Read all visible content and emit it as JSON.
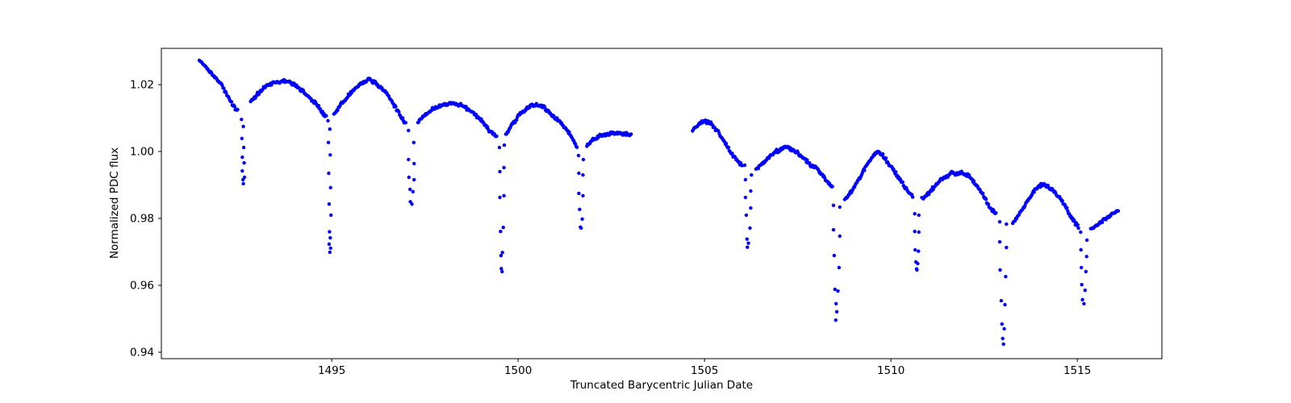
{
  "chart_data": {
    "type": "scatter",
    "title": "",
    "xlabel": "Truncated Barycentric Julian Date",
    "ylabel": "Normalized PDC flux",
    "xlim": [
      1490.43,
      1517.27
    ],
    "ylim": [
      0.93807,
      1.03085
    ],
    "xticks": [
      1495,
      1500,
      1505,
      1510,
      1515
    ],
    "xtick_labels": [
      "1495",
      "1500",
      "1505",
      "1510",
      "1515"
    ],
    "yticks": [
      0.94,
      0.96,
      0.98,
      1.0,
      1.02
    ],
    "ytick_labels": [
      "0.94",
      "0.96",
      "0.98",
      "1.00",
      "1.02"
    ],
    "grid": false,
    "legend": null,
    "marker": {
      "color": "#0000ff",
      "radius_px": 2.2
    },
    "sampling_cadence_days": 0.0205,
    "noise_amplitude": 0.0006,
    "data_gap": [
      1503.05,
      1504.68
    ],
    "series": [
      {
        "name": "continuum-segment-1",
        "control_points": [
          [
            1491.45,
            1.0272
          ],
          [
            1491.6,
            1.0253
          ],
          [
            1491.75,
            1.0235
          ],
          [
            1491.9,
            1.0218
          ],
          [
            1492.03,
            1.0202
          ],
          [
            1492.17,
            1.0174
          ],
          [
            1492.3,
            1.0147
          ],
          [
            1492.4,
            1.0131
          ],
          [
            1492.47,
            1.0124
          ],
          [
            1492.82,
            1.0148
          ],
          [
            1493.0,
            1.017
          ],
          [
            1493.2,
            1.0191
          ],
          [
            1493.45,
            1.0206
          ],
          [
            1493.74,
            1.0211
          ],
          [
            1493.95,
            1.0203
          ],
          [
            1494.15,
            1.0187
          ],
          [
            1494.38,
            1.0164
          ],
          [
            1494.58,
            1.0143
          ],
          [
            1494.74,
            1.0119
          ],
          [
            1494.86,
            1.0103
          ],
          [
            1495.06,
            1.011
          ],
          [
            1495.25,
            1.014
          ],
          [
            1495.45,
            1.0168
          ],
          [
            1495.65,
            1.0192
          ],
          [
            1495.82,
            1.0206
          ],
          [
            1496.0,
            1.0215
          ],
          [
            1496.18,
            1.0206
          ],
          [
            1496.35,
            1.0187
          ],
          [
            1496.55,
            1.0163
          ],
          [
            1496.75,
            1.0124
          ],
          [
            1496.88,
            1.01
          ],
          [
            1496.99,
            1.0082
          ],
          [
            1497.32,
            1.0091
          ],
          [
            1497.52,
            1.0111
          ],
          [
            1497.75,
            1.013
          ],
          [
            1498.0,
            1.0141
          ],
          [
            1498.27,
            1.0146
          ],
          [
            1498.5,
            1.0137
          ],
          [
            1498.75,
            1.012
          ],
          [
            1499.0,
            1.0094
          ],
          [
            1499.2,
            1.0066
          ],
          [
            1499.35,
            1.005
          ],
          [
            1499.43,
            1.0044
          ],
          [
            1499.67,
            1.0052
          ],
          [
            1499.85,
            1.0082
          ],
          [
            1500.05,
            1.0112
          ],
          [
            1500.25,
            1.0132
          ],
          [
            1500.5,
            1.0141
          ],
          [
            1500.7,
            1.0131
          ],
          [
            1500.9,
            1.011
          ],
          [
            1501.1,
            1.009
          ],
          [
            1501.3,
            1.0066
          ],
          [
            1501.47,
            1.0036
          ],
          [
            1501.57,
            1.0014
          ],
          [
            1501.84,
            1.0017
          ],
          [
            1502.0,
            1.0035
          ],
          [
            1502.2,
            1.0047
          ],
          [
            1502.45,
            1.0053
          ],
          [
            1502.66,
            1.0056
          ],
          [
            1502.85,
            1.0053
          ],
          [
            1503.05,
            1.0049
          ]
        ],
        "transit_windows": [
          [
            1492.48,
            1492.81
          ],
          [
            1494.87,
            1495.05
          ],
          [
            1497.0,
            1497.31
          ],
          [
            1499.44,
            1499.66
          ],
          [
            1501.58,
            1501.83
          ]
        ]
      },
      {
        "name": "continuum-segment-2",
        "control_points": [
          [
            1504.68,
            1.0063
          ],
          [
            1504.85,
            1.0083
          ],
          [
            1505.0,
            1.0091
          ],
          [
            1505.15,
            1.0087
          ],
          [
            1505.35,
            1.0062
          ],
          [
            1505.55,
            1.0025
          ],
          [
            1505.75,
            0.999
          ],
          [
            1505.92,
            0.9967
          ],
          [
            1506.02,
            0.9956
          ],
          [
            1506.38,
            0.9949
          ],
          [
            1506.48,
            0.9956
          ],
          [
            1506.68,
            0.9977
          ],
          [
            1506.92,
            1.0
          ],
          [
            1507.16,
            1.0013
          ],
          [
            1507.4,
            1.0004
          ],
          [
            1507.6,
            0.9986
          ],
          [
            1507.8,
            0.9964
          ],
          [
            1508.0,
            0.995
          ],
          [
            1508.25,
            0.9915
          ],
          [
            1508.43,
            0.9893
          ],
          [
            1508.75,
            0.9853
          ],
          [
            1508.92,
            0.9878
          ],
          [
            1509.1,
            0.991
          ],
          [
            1509.3,
            0.995
          ],
          [
            1509.5,
            0.9984
          ],
          [
            1509.63,
            1.0001
          ],
          [
            1509.78,
            0.9988
          ],
          [
            1509.95,
            0.9962
          ],
          [
            1510.15,
            0.9932
          ],
          [
            1510.35,
            0.9899
          ],
          [
            1510.5,
            0.9876
          ],
          [
            1510.59,
            0.9866
          ],
          [
            1510.83,
            0.9857
          ],
          [
            1511.0,
            0.9874
          ],
          [
            1511.2,
            0.99
          ],
          [
            1511.4,
            0.992
          ],
          [
            1511.55,
            0.993
          ],
          [
            1511.65,
            0.9938
          ],
          [
            1511.75,
            0.993
          ],
          [
            1511.85,
            0.9938
          ],
          [
            1511.95,
            0.9933
          ],
          [
            1512.08,
            0.993
          ],
          [
            1512.25,
            0.9906
          ],
          [
            1512.45,
            0.9875
          ],
          [
            1512.65,
            0.9833
          ],
          [
            1512.82,
            0.9816
          ],
          [
            1513.26,
            0.9784
          ],
          [
            1513.44,
            0.9813
          ],
          [
            1513.66,
            0.985
          ],
          [
            1513.87,
            0.9887
          ],
          [
            1514.05,
            0.9901
          ],
          [
            1514.2,
            0.9896
          ],
          [
            1514.4,
            0.9878
          ],
          [
            1514.6,
            0.985
          ],
          [
            1514.8,
            0.9812
          ],
          [
            1514.95,
            0.9785
          ],
          [
            1515.03,
            0.9775
          ],
          [
            1515.36,
            0.977
          ],
          [
            1515.5,
            0.9778
          ],
          [
            1515.7,
            0.9795
          ],
          [
            1515.9,
            0.9812
          ],
          [
            1516.1,
            0.9824
          ]
        ],
        "transit_windows": [
          [
            1506.03,
            1506.37
          ],
          [
            1508.44,
            1508.74
          ],
          [
            1510.6,
            1510.82
          ],
          [
            1512.83,
            1513.25
          ],
          [
            1515.04,
            1515.35
          ]
        ]
      }
    ],
    "transits": [
      {
        "center": 1492.6,
        "points": [
          [
            1492.58,
            1.0096
          ],
          [
            1492.63,
            1.0075
          ],
          [
            1492.59,
            1.0039
          ],
          [
            1492.64,
            1.0012
          ],
          [
            1492.6,
            0.9983
          ],
          [
            1492.65,
            0.9966
          ],
          [
            1492.6,
            0.9942
          ],
          [
            1492.66,
            0.9923
          ],
          [
            1492.62,
            0.9916
          ],
          [
            1492.63,
            0.9904
          ]
        ]
      },
      {
        "center": 1494.95,
        "points": [
          [
            1494.9,
            1.0092
          ],
          [
            1494.95,
            1.0067
          ],
          [
            1494.91,
            1.0027
          ],
          [
            1494.96,
            0.999
          ],
          [
            1494.92,
            0.9935
          ],
          [
            1494.97,
            0.9892
          ],
          [
            1494.93,
            0.9843
          ],
          [
            1494.98,
            0.981
          ],
          [
            1494.94,
            0.976
          ],
          [
            1494.96,
            0.9742
          ],
          [
            1494.93,
            0.9723
          ],
          [
            1494.97,
            0.9711
          ],
          [
            1494.95,
            0.9699
          ]
        ]
      },
      {
        "center": 1497.13,
        "points": [
          [
            1497.06,
            1.0063
          ],
          [
            1497.2,
            1.0027
          ],
          [
            1497.06,
            0.9976
          ],
          [
            1497.21,
            0.9964
          ],
          [
            1497.07,
            0.9923
          ],
          [
            1497.21,
            0.9916
          ],
          [
            1497.1,
            0.9887
          ],
          [
            1497.18,
            0.988
          ],
          [
            1497.11,
            0.985
          ],
          [
            1497.15,
            0.9843
          ]
        ]
      },
      {
        "center": 1499.56,
        "points": [
          [
            1499.5,
            1.0012
          ],
          [
            1499.63,
            1.0019
          ],
          [
            1499.51,
            0.994
          ],
          [
            1499.62,
            0.9952
          ],
          [
            1499.51,
            0.9863
          ],
          [
            1499.62,
            0.9868
          ],
          [
            1499.53,
            0.9761
          ],
          [
            1499.6,
            0.9773
          ],
          [
            1499.54,
            0.9689
          ],
          [
            1499.58,
            0.9698
          ],
          [
            1499.55,
            0.965
          ],
          [
            1499.57,
            0.9641
          ]
        ]
      },
      {
        "center": 1501.68,
        "points": [
          [
            1501.62,
            0.9988
          ],
          [
            1501.75,
            0.9976
          ],
          [
            1501.63,
            0.9935
          ],
          [
            1501.74,
            0.993
          ],
          [
            1501.63,
            0.9875
          ],
          [
            1501.74,
            0.9868
          ],
          [
            1501.65,
            0.9827
          ],
          [
            1501.72,
            0.9798
          ],
          [
            1501.67,
            0.9774
          ],
          [
            1501.69,
            0.9771
          ]
        ]
      },
      {
        "center": 1506.17,
        "points": [
          [
            1506.08,
            0.9959
          ],
          [
            1506.26,
            0.993
          ],
          [
            1506.1,
            0.9916
          ],
          [
            1506.24,
            0.9882
          ],
          [
            1506.1,
            0.9863
          ],
          [
            1506.24,
            0.9831
          ],
          [
            1506.12,
            0.981
          ],
          [
            1506.22,
            0.9771
          ],
          [
            1506.14,
            0.9738
          ],
          [
            1506.18,
            0.9726
          ],
          [
            1506.15,
            0.9714
          ]
        ]
      },
      {
        "center": 1508.55,
        "points": [
          [
            1508.46,
            0.9839
          ],
          [
            1508.63,
            0.9834
          ],
          [
            1508.46,
            0.9766
          ],
          [
            1508.63,
            0.9747
          ],
          [
            1508.48,
            0.9689
          ],
          [
            1508.61,
            0.9653
          ],
          [
            1508.5,
            0.9588
          ],
          [
            1508.58,
            0.9583
          ],
          [
            1508.53,
            0.9545
          ],
          [
            1508.55,
            0.9521
          ],
          [
            1508.52,
            0.9496
          ]
        ]
      },
      {
        "center": 1510.7,
        "points": [
          [
            1510.64,
            0.9814
          ],
          [
            1510.75,
            0.981
          ],
          [
            1510.64,
            0.9761
          ],
          [
            1510.75,
            0.9759
          ],
          [
            1510.65,
            0.9706
          ],
          [
            1510.74,
            0.9702
          ],
          [
            1510.67,
            0.967
          ],
          [
            1510.72,
            0.9665
          ],
          [
            1510.69,
            0.9649
          ],
          [
            1510.7,
            0.9646
          ]
        ]
      },
      {
        "center": 1513.01,
        "points": [
          [
            1512.92,
            0.979
          ],
          [
            1513.1,
            0.9783
          ],
          [
            1512.92,
            0.973
          ],
          [
            1513.1,
            0.9713
          ],
          [
            1512.93,
            0.9646
          ],
          [
            1513.08,
            0.9626
          ],
          [
            1512.96,
            0.9554
          ],
          [
            1513.06,
            0.9542
          ],
          [
            1512.98,
            0.9484
          ],
          [
            1513.04,
            0.947
          ],
          [
            1513.0,
            0.9441
          ],
          [
            1513.02,
            0.9424
          ]
        ]
      },
      {
        "center": 1515.17,
        "points": [
          [
            1515.09,
            0.9759
          ],
          [
            1515.26,
            0.9735
          ],
          [
            1515.1,
            0.9706
          ],
          [
            1515.25,
            0.9686
          ],
          [
            1515.11,
            0.9653
          ],
          [
            1515.23,
            0.9641
          ],
          [
            1515.12,
            0.9602
          ],
          [
            1515.21,
            0.9585
          ],
          [
            1515.14,
            0.9557
          ],
          [
            1515.18,
            0.9545
          ]
        ]
      }
    ]
  }
}
